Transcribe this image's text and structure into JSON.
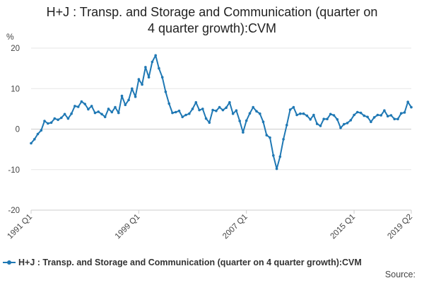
{
  "chart_data": {
    "type": "line",
    "title_line1": "H+J : Transp. and Storage and Communication (quarter on",
    "title_line2": "4 quarter growth):CVM",
    "ylabel": "%",
    "ylim": [
      -20,
      20
    ],
    "yticks": [
      20,
      10,
      0,
      -10,
      -20
    ],
    "xticks": [
      "1991 Q1",
      "1999 Q1",
      "2007 Q1",
      "2015 Q1",
      "2019 Q2"
    ],
    "grid": true,
    "legend_placement": "bottom",
    "line_color": "#1f78b4",
    "series": [
      {
        "name": "H+J : Transp. and Storage and Communication (quarter on 4 quarter growth):CVM",
        "x": [
          "1991 Q1",
          "1991 Q2",
          "1991 Q3",
          "1991 Q4",
          "1992 Q1",
          "1992 Q2",
          "1992 Q3",
          "1992 Q4",
          "1993 Q1",
          "1993 Q2",
          "1993 Q3",
          "1993 Q4",
          "1994 Q1",
          "1994 Q2",
          "1994 Q3",
          "1994 Q4",
          "1995 Q1",
          "1995 Q2",
          "1995 Q3",
          "1995 Q4",
          "1996 Q1",
          "1996 Q2",
          "1996 Q3",
          "1996 Q4",
          "1997 Q1",
          "1997 Q2",
          "1997 Q3",
          "1997 Q4",
          "1998 Q1",
          "1998 Q2",
          "1998 Q3",
          "1998 Q4",
          "1999 Q1",
          "1999 Q2",
          "1999 Q3",
          "1999 Q4",
          "2000 Q1",
          "2000 Q2",
          "2000 Q3",
          "2000 Q4",
          "2001 Q1",
          "2001 Q2",
          "2001 Q3",
          "2001 Q4",
          "2002 Q1",
          "2002 Q2",
          "2002 Q3",
          "2002 Q4",
          "2003 Q1",
          "2003 Q2",
          "2003 Q3",
          "2003 Q4",
          "2004 Q1",
          "2004 Q2",
          "2004 Q3",
          "2004 Q4",
          "2005 Q1",
          "2005 Q2",
          "2005 Q3",
          "2005 Q4",
          "2006 Q1",
          "2006 Q2",
          "2006 Q3",
          "2006 Q4",
          "2007 Q1",
          "2007 Q2",
          "2007 Q3",
          "2007 Q4",
          "2008 Q1",
          "2008 Q2",
          "2008 Q3",
          "2008 Q4",
          "2009 Q1",
          "2009 Q2",
          "2009 Q3",
          "2009 Q4",
          "2010 Q1",
          "2010 Q2",
          "2010 Q3",
          "2010 Q4",
          "2011 Q1",
          "2011 Q2",
          "2011 Q3",
          "2011 Q4",
          "2012 Q1",
          "2012 Q2",
          "2012 Q3",
          "2012 Q4",
          "2013 Q1",
          "2013 Q2",
          "2013 Q3",
          "2013 Q4",
          "2014 Q1",
          "2014 Q2",
          "2014 Q3",
          "2014 Q4",
          "2015 Q1",
          "2015 Q2",
          "2015 Q3",
          "2015 Q4",
          "2016 Q1",
          "2016 Q2",
          "2016 Q3",
          "2016 Q4",
          "2017 Q1",
          "2017 Q2",
          "2017 Q3",
          "2017 Q4",
          "2018 Q1",
          "2018 Q2",
          "2018 Q3",
          "2018 Q4",
          "2019 Q1",
          "2019 Q2"
        ],
        "values": [
          -3.5,
          -2.5,
          -1.2,
          -0.3,
          2.0,
          1.4,
          1.6,
          2.6,
          2.3,
          2.8,
          3.7,
          2.6,
          3.8,
          5.7,
          5.5,
          6.8,
          6.2,
          4.9,
          5.7,
          4.0,
          4.3,
          3.7,
          3.0,
          5.0,
          4.2,
          5.4,
          4.0,
          8.2,
          6.0,
          7.2,
          10.0,
          8.0,
          12.3,
          11.0,
          15.3,
          12.8,
          16.6,
          18.2,
          15.0,
          12.8,
          9.2,
          6.3,
          4.0,
          4.2,
          4.5,
          3.0,
          3.5,
          3.8,
          5.0,
          6.6,
          4.7,
          5.0,
          2.6,
          1.6,
          4.7,
          4.5,
          5.4,
          4.7,
          5.3,
          6.6,
          3.8,
          4.6,
          2.0,
          -0.8,
          2.1,
          3.9,
          5.4,
          4.4,
          3.8,
          1.8,
          -1.5,
          -2.1,
          -6.5,
          -9.8,
          -6.8,
          -2.5,
          1.0,
          4.8,
          5.4,
          3.5,
          3.8,
          3.8,
          3.3,
          2.4,
          3.5,
          1.3,
          0.8,
          2.5,
          2.5,
          3.7,
          3.4,
          2.4,
          0.3,
          1.2,
          1.5,
          2.2,
          3.5,
          4.2,
          4.0,
          3.3,
          3.0,
          1.8,
          2.9,
          3.5,
          3.4,
          4.6,
          3.2,
          3.4,
          2.5,
          2.5,
          3.9,
          4.1,
          6.7,
          5.4
        ]
      }
    ]
  },
  "source_label": "Source:"
}
